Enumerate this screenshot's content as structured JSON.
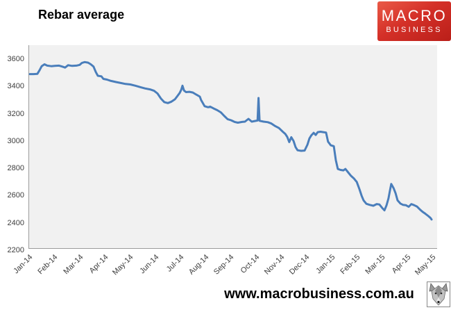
{
  "title": "Rebar average",
  "logo": {
    "line1": "MACRO",
    "line2": "BUSINESS",
    "bg_color_top": "#ea5a47",
    "bg_color_bottom": "#ba1f19",
    "text_color": "#ffffff"
  },
  "footer": {
    "url": "www.macrobusiness.com.au"
  },
  "icons": {
    "wolf": "wolf-face-icon"
  },
  "colors": {
    "line": "#4a7ebb",
    "plot_background": "#f1f1f1",
    "axis": "#9b9b9b",
    "tick_text": "#3d3d3d"
  },
  "chart_data": {
    "type": "line",
    "title": "Rebar average",
    "xlabel": "",
    "ylabel": "",
    "grid": false,
    "legend": false,
    "plot_bg": "#f1f1f1",
    "line_color": "#4a7ebb",
    "x_tick_labels": [
      "Jan-14",
      "Feb-14",
      "Mar-14",
      "Apr-14",
      "May-14",
      "Jun-14",
      "Jul-14",
      "Aug-14",
      "Sep-14",
      "Oct-14",
      "Nov-14",
      "Dec-14",
      "Jan-15",
      "Feb-15",
      "Mar-15",
      "Apr-15",
      "May-15"
    ],
    "y_tick_labels": [
      "3600",
      "3400",
      "3200",
      "3000",
      "2800",
      "2600",
      "2400",
      "2200"
    ],
    "ylim": [
      2215,
      3700
    ],
    "series": [
      {
        "name": "Rebar average",
        "x_unit": "month-index (0 = Jan-14, 16 = May-15)",
        "points": [
          [
            0.0,
            3490
          ],
          [
            0.15,
            3490
          ],
          [
            0.3,
            3492
          ],
          [
            0.39,
            3520
          ],
          [
            0.47,
            3548
          ],
          [
            0.58,
            3562
          ],
          [
            0.69,
            3552
          ],
          [
            0.85,
            3548
          ],
          [
            0.99,
            3550
          ],
          [
            1.16,
            3552
          ],
          [
            1.29,
            3545
          ],
          [
            1.4,
            3538
          ],
          [
            1.52,
            3555
          ],
          [
            1.68,
            3550
          ],
          [
            1.85,
            3552
          ],
          [
            1.98,
            3558
          ],
          [
            2.07,
            3572
          ],
          [
            2.18,
            3578
          ],
          [
            2.31,
            3574
          ],
          [
            2.42,
            3562
          ],
          [
            2.53,
            3545
          ],
          [
            2.62,
            3505
          ],
          [
            2.7,
            3478
          ],
          [
            2.84,
            3474
          ],
          [
            2.92,
            3455
          ],
          [
            3.06,
            3450
          ],
          [
            3.22,
            3440
          ],
          [
            3.42,
            3432
          ],
          [
            3.61,
            3425
          ],
          [
            3.8,
            3418
          ],
          [
            3.99,
            3414
          ],
          [
            4.19,
            3405
          ],
          [
            4.38,
            3395
          ],
          [
            4.57,
            3385
          ],
          [
            4.77,
            3378
          ],
          [
            4.93,
            3368
          ],
          [
            5.07,
            3348
          ],
          [
            5.21,
            3310
          ],
          [
            5.34,
            3285
          ],
          [
            5.48,
            3278
          ],
          [
            5.62,
            3288
          ],
          [
            5.76,
            3305
          ],
          [
            5.87,
            3332
          ],
          [
            5.95,
            3352
          ],
          [
            6.01,
            3375
          ],
          [
            6.06,
            3405
          ],
          [
            6.12,
            3370
          ],
          [
            6.2,
            3358
          ],
          [
            6.34,
            3360
          ],
          [
            6.47,
            3355
          ],
          [
            6.61,
            3340
          ],
          [
            6.75,
            3325
          ],
          [
            6.8,
            3300
          ],
          [
            6.94,
            3255
          ],
          [
            7.08,
            3247
          ],
          [
            7.16,
            3252
          ],
          [
            7.3,
            3238
          ],
          [
            7.44,
            3226
          ],
          [
            7.58,
            3210
          ],
          [
            7.71,
            3185
          ],
          [
            7.85,
            3160
          ],
          [
            7.99,
            3152
          ],
          [
            8.13,
            3140
          ],
          [
            8.26,
            3134
          ],
          [
            8.43,
            3140
          ],
          [
            8.54,
            3142
          ],
          [
            8.68,
            3162
          ],
          [
            8.81,
            3142
          ],
          [
            8.95,
            3147
          ],
          [
            9.04,
            3150
          ],
          [
            9.08,
            3315
          ],
          [
            9.12,
            3148
          ],
          [
            9.28,
            3142
          ],
          [
            9.45,
            3138
          ],
          [
            9.59,
            3128
          ],
          [
            9.72,
            3112
          ],
          [
            9.89,
            3095
          ],
          [
            10.03,
            3070
          ],
          [
            10.14,
            3052
          ],
          [
            10.22,
            3030
          ],
          [
            10.3,
            2992
          ],
          [
            10.38,
            3028
          ],
          [
            10.47,
            3000
          ],
          [
            10.55,
            2955
          ],
          [
            10.63,
            2932
          ],
          [
            10.77,
            2928
          ],
          [
            10.91,
            2930
          ],
          [
            11.02,
            2972
          ],
          [
            11.1,
            3018
          ],
          [
            11.18,
            3042
          ],
          [
            11.27,
            3060
          ],
          [
            11.35,
            3044
          ],
          [
            11.43,
            3065
          ],
          [
            11.54,
            3068
          ],
          [
            11.65,
            3065
          ],
          [
            11.76,
            3062
          ],
          [
            11.84,
            2995
          ],
          [
            11.95,
            2968
          ],
          [
            12.07,
            2962
          ],
          [
            12.15,
            2860
          ],
          [
            12.23,
            2795
          ],
          [
            12.34,
            2788
          ],
          [
            12.45,
            2785
          ],
          [
            12.53,
            2795
          ],
          [
            12.64,
            2770
          ],
          [
            12.75,
            2745
          ],
          [
            12.87,
            2725
          ],
          [
            12.98,
            2700
          ],
          [
            13.09,
            2645
          ],
          [
            13.17,
            2600
          ],
          [
            13.25,
            2565
          ],
          [
            13.36,
            2540
          ],
          [
            13.5,
            2532
          ],
          [
            13.64,
            2526
          ],
          [
            13.77,
            2538
          ],
          [
            13.88,
            2535
          ],
          [
            13.99,
            2510
          ],
          [
            14.08,
            2492
          ],
          [
            14.16,
            2528
          ],
          [
            14.24,
            2580
          ],
          [
            14.3,
            2640
          ],
          [
            14.35,
            2685
          ],
          [
            14.44,
            2655
          ],
          [
            14.52,
            2618
          ],
          [
            14.6,
            2565
          ],
          [
            14.71,
            2542
          ],
          [
            14.82,
            2532
          ],
          [
            14.93,
            2530
          ],
          [
            15.04,
            2518
          ],
          [
            15.15,
            2538
          ],
          [
            15.26,
            2530
          ],
          [
            15.37,
            2520
          ],
          [
            15.48,
            2500
          ],
          [
            15.59,
            2482
          ],
          [
            15.7,
            2468
          ],
          [
            15.81,
            2452
          ],
          [
            15.9,
            2438
          ],
          [
            15.95,
            2425
          ]
        ]
      }
    ]
  }
}
